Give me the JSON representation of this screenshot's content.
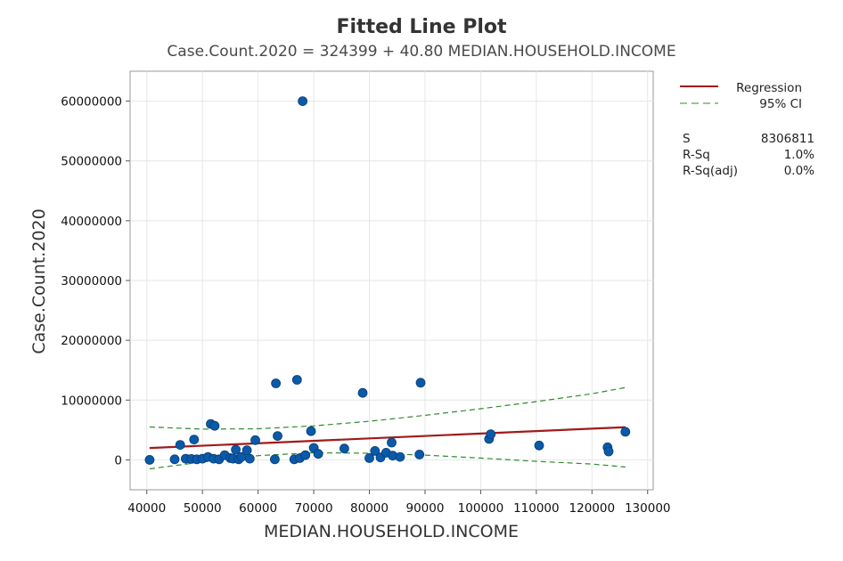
{
  "chart_data": {
    "type": "scatter",
    "title": "Fitted Line Plot",
    "subtitle": "Case.Count.2020 = 324399 + 40.80 MEDIAN.HOUSEHOLD.INCOME",
    "xlabel": "MEDIAN.HOUSEHOLD.INCOME",
    "ylabel": "Case.Count.2020",
    "xlim": [
      37000,
      131000
    ],
    "ylim": [
      -5000000,
      65000000
    ],
    "xticks": [
      40000,
      50000,
      60000,
      70000,
      80000,
      90000,
      100000,
      110000,
      120000,
      130000
    ],
    "yticks": [
      0,
      10000000,
      20000000,
      30000000,
      40000000,
      50000000,
      60000000
    ],
    "grid": true,
    "legend_position": "top-right",
    "regression": {
      "intercept": 324399,
      "slope": 40.8,
      "x_range": [
        40500,
        126000
      ],
      "color": "#a11a1a"
    },
    "ci": {
      "color": "#2e8b2e",
      "upper": [
        [
          40500,
          5500000
        ],
        [
          50000,
          5150000
        ],
        [
          60000,
          5200000
        ],
        [
          70000,
          5700000
        ],
        [
          80000,
          6450000
        ],
        [
          90000,
          7450000
        ],
        [
          100000,
          8550000
        ],
        [
          110000,
          9750000
        ],
        [
          120000,
          11050000
        ],
        [
          126000,
          12100000
        ]
      ],
      "lower": [
        [
          40500,
          -1500000
        ],
        [
          50000,
          -350000
        ],
        [
          60000,
          700000
        ],
        [
          70000,
          1200000
        ],
        [
          80000,
          1100000
        ],
        [
          90000,
          800000
        ],
        [
          100000,
          300000
        ],
        [
          110000,
          -250000
        ],
        [
          120000,
          -700000
        ],
        [
          126000,
          -1200000
        ]
      ]
    },
    "points_color": "#0a5aa8",
    "points": [
      [
        40500,
        0
      ],
      [
        45000,
        100000
      ],
      [
        46000,
        2500000
      ],
      [
        47000,
        200000
      ],
      [
        48000,
        150000
      ],
      [
        48500,
        3400000
      ],
      [
        49000,
        100000
      ],
      [
        50000,
        200000
      ],
      [
        51000,
        500000
      ],
      [
        51500,
        6000000
      ],
      [
        52000,
        200000
      ],
      [
        52200,
        5700000
      ],
      [
        53000,
        100000
      ],
      [
        54000,
        800000
      ],
      [
        55000,
        300000
      ],
      [
        55500,
        200000
      ],
      [
        56000,
        1700000
      ],
      [
        56500,
        100000
      ],
      [
        57000,
        500000
      ],
      [
        58000,
        1600000
      ],
      [
        58500,
        200000
      ],
      [
        59500,
        3300000
      ],
      [
        63000,
        100000
      ],
      [
        63200,
        12800000
      ],
      [
        63500,
        4000000
      ],
      [
        66500,
        100000
      ],
      [
        67000,
        13400000
      ],
      [
        67500,
        300000
      ],
      [
        68000,
        60000000
      ],
      [
        68500,
        800000
      ],
      [
        69500,
        4800000
      ],
      [
        70000,
        2000000
      ],
      [
        70800,
        1000000
      ],
      [
        75500,
        1900000
      ],
      [
        78800,
        11200000
      ],
      [
        80000,
        300000
      ],
      [
        81000,
        1500000
      ],
      [
        82000,
        400000
      ],
      [
        83000,
        1200000
      ],
      [
        84000,
        2900000
      ],
      [
        84200,
        700000
      ],
      [
        85500,
        500000
      ],
      [
        89000,
        900000
      ],
      [
        89200,
        12900000
      ],
      [
        101500,
        3500000
      ],
      [
        101800,
        4300000
      ],
      [
        110500,
        2400000
      ],
      [
        122800,
        2100000
      ],
      [
        123000,
        1400000
      ],
      [
        126000,
        4700000
      ]
    ],
    "legend": {
      "regression_label": "Regression",
      "ci_label": "95% CI"
    },
    "stats": [
      {
        "name": "S",
        "value": "8306811"
      },
      {
        "name": "R-Sq",
        "value": "1.0%"
      },
      {
        "name": "R-Sq(adj)",
        "value": "0.0%"
      }
    ]
  }
}
